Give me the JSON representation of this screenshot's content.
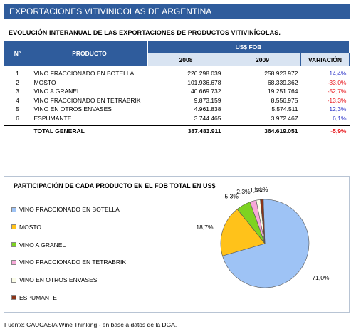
{
  "header": {
    "banner": "EXPORTACIONES VITIVINICOLAS DE ARGENTINA",
    "subtitle": "EVOLUCIÓN INTERANUAL DE LAS EXPORTACIONES DE PRODUCTOS VITIVINÍCOLAS."
  },
  "table": {
    "col_num": "N°",
    "col_product": "PRODUCTO",
    "col_group": "US$ FOB",
    "col_2008": "2008",
    "col_2009": "2009",
    "col_var": "VARIACIÓN",
    "rows": [
      {
        "num": "1",
        "product": "VINO FRACCIONADO EN BOTELLA",
        "v2008": "226.298.039",
        "v2009": "258.923.972",
        "var": "14,4%"
      },
      {
        "num": "2",
        "product": "MOSTO",
        "v2008": "101.936.678",
        "v2009": "68.339.362",
        "var": "-33,0%"
      },
      {
        "num": "3",
        "product": "VINO A GRANEL",
        "v2008": "40.669.732",
        "v2009": "19.251.764",
        "var": "-52,7%"
      },
      {
        "num": "4",
        "product": "VINO FRACCIONADO EN TETRABRIK",
        "v2008": "9.873.159",
        "v2009": "8.556.975",
        "var": "-13,3%"
      },
      {
        "num": "5",
        "product": "VINO EN OTROS ENVASES",
        "v2008": "4.961.838",
        "v2009": "5.574.511",
        "var": "12,3%"
      },
      {
        "num": "6",
        "product": "ESPUMANTE",
        "v2008": "3.744.465",
        "v2009": "3.972.467",
        "var": "6,1%"
      }
    ],
    "total": {
      "label": "TOTAL GENERAL",
      "v2008": "387.483.911",
      "v2009": "364.619.051",
      "var": "-5,9%"
    }
  },
  "chart_data": {
    "type": "pie",
    "title": "PARTICIPACIÓN DE CADA PRODUCTO EN EL FOB TOTAL EN US$",
    "categories": [
      "VINO FRACCIONADO EN BOTELLA",
      "MOSTO",
      "VINO A GRANEL",
      "VINO FRACCIONADO EN TETRABRIK",
      "VINO EN OTROS ENVASES",
      "ESPUMANTE"
    ],
    "values": [
      71.0,
      18.7,
      5.3,
      2.3,
      1.5,
      1.1
    ],
    "labels": [
      "71,0%",
      "18,7%",
      "5,3%",
      "2,3%",
      "1,5%",
      "1,1%"
    ],
    "colors": [
      "#9ec3f5",
      "#ffc21a",
      "#7ed321",
      "#f7a8d8",
      "#fbfde8",
      "#8b3418"
    ],
    "legend": "left"
  },
  "source": "Fuente: CAUCASIA Wine Thinking - en base a datos de la DGA."
}
